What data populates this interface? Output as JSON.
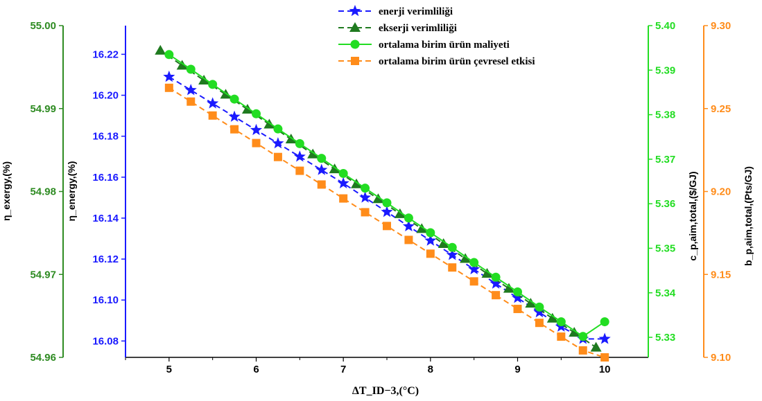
{
  "chart_data": {
    "type": "line",
    "xlabel": "ΔT_ID−3,(°C)",
    "x_ticks": [
      "5",
      "6",
      "7",
      "8",
      "9",
      "10"
    ],
    "xlim": [
      4.5,
      10.5
    ],
    "axes": [
      {
        "id": "exergy",
        "label": "η_exergy,(%)",
        "color": "#2e8b22",
        "range": [
          54.96,
          55.0
        ],
        "ticks": [
          "54.96",
          "54.97",
          "54.98",
          "54.99",
          "55.00"
        ]
      },
      {
        "id": "energy",
        "label": "η_energy,(%)",
        "color": "#1a1aff",
        "range": [
          16.072,
          16.234
        ],
        "ticks": [
          "16.08",
          "16.10",
          "16.12",
          "16.14",
          "16.16",
          "16.18",
          "16.20",
          "16.22"
        ]
      },
      {
        "id": "cost",
        "label": "c_p,aim,total,($/GJ)",
        "color": "#22dd22",
        "range": [
          5.3255,
          5.4
        ],
        "ticks": [
          "5.33",
          "5.34",
          "5.35",
          "5.36",
          "5.37",
          "5.38",
          "5.39",
          "5.40"
        ]
      },
      {
        "id": "env",
        "label": "b_p,aim,total,(Pts/GJ)",
        "color": "#ff8c1a",
        "range": [
          9.1,
          9.3
        ],
        "ticks": [
          "9.10",
          "9.15",
          "9.20",
          "9.25",
          "9.30"
        ]
      }
    ],
    "series": [
      {
        "name": "enerji verimliliği",
        "axis": "energy",
        "color": "#1a1aff",
        "dash": "8,5",
        "marker": "star",
        "x": [
          5.0,
          5.25,
          5.5,
          5.75,
          6.0,
          6.25,
          6.5,
          6.75,
          7.0,
          7.25,
          7.5,
          7.75,
          8.0,
          8.25,
          8.5,
          8.75,
          9.0,
          9.25,
          9.5,
          9.75,
          10.0
        ],
        "y": [
          16.209,
          16.2025,
          16.196,
          16.1895,
          16.183,
          16.1765,
          16.17,
          16.1635,
          16.157,
          16.15,
          16.143,
          16.136,
          16.129,
          16.122,
          16.115,
          16.108,
          16.101,
          16.094,
          16.087,
          16.081,
          16.081
        ]
      },
      {
        "name": "ekserji verimliliği",
        "axis": "exergy",
        "color": "#1f7a1f",
        "dash": "8,5",
        "marker": "triangle",
        "x": [
          4.9,
          5.15,
          5.4,
          5.65,
          5.9,
          6.15,
          6.4,
          6.65,
          6.9,
          7.15,
          7.4,
          7.65,
          7.9,
          8.15,
          8.4,
          8.65,
          8.9,
          9.15,
          9.4,
          9.65,
          9.9
        ],
        "y": [
          54.997,
          54.9952,
          54.9934,
          54.9917,
          54.9899,
          54.9881,
          54.9863,
          54.9845,
          54.9827,
          54.9809,
          54.9791,
          54.9773,
          54.9755,
          54.9737,
          54.9719,
          54.9701,
          54.9683,
          54.9665,
          54.9647,
          54.963,
          54.9612
        ]
      },
      {
        "name": "ortalama birim ürün maliyeti",
        "axis": "cost",
        "color": "#22dd22",
        "dash": "",
        "marker": "circle",
        "x": [
          5.0,
          5.25,
          5.5,
          5.75,
          6.0,
          6.25,
          6.5,
          6.75,
          7.0,
          7.25,
          7.5,
          7.75,
          8.0,
          8.25,
          8.5,
          8.75,
          9.0,
          9.25,
          9.5,
          9.75,
          10.0
        ],
        "y": [
          5.3935,
          5.3902,
          5.3868,
          5.3835,
          5.3802,
          5.3768,
          5.3735,
          5.3702,
          5.3668,
          5.3635,
          5.3602,
          5.3568,
          5.3535,
          5.3502,
          5.3468,
          5.3435,
          5.3402,
          5.3368,
          5.3335,
          5.3302,
          5.3335
        ]
      },
      {
        "name": "ortalama birim ürün çevresel etkisi",
        "axis": "env",
        "color": "#ff8c1a",
        "dash": "8,5",
        "marker": "square",
        "x": [
          5.0,
          5.25,
          5.5,
          5.75,
          6.0,
          6.25,
          6.5,
          6.75,
          7.0,
          7.25,
          7.5,
          7.75,
          8.0,
          8.25,
          8.5,
          8.75,
          9.0,
          9.25,
          9.5,
          9.75,
          10.0
        ],
        "y": [
          9.2625,
          9.2542,
          9.2458,
          9.2375,
          9.2292,
          9.2208,
          9.2125,
          9.2042,
          9.1958,
          9.1875,
          9.1792,
          9.1708,
          9.1625,
          9.1542,
          9.1458,
          9.1375,
          9.1292,
          9.1208,
          9.1125,
          9.1042,
          9.1
        ]
      }
    ],
    "legend": "top-center",
    "grid": false
  }
}
